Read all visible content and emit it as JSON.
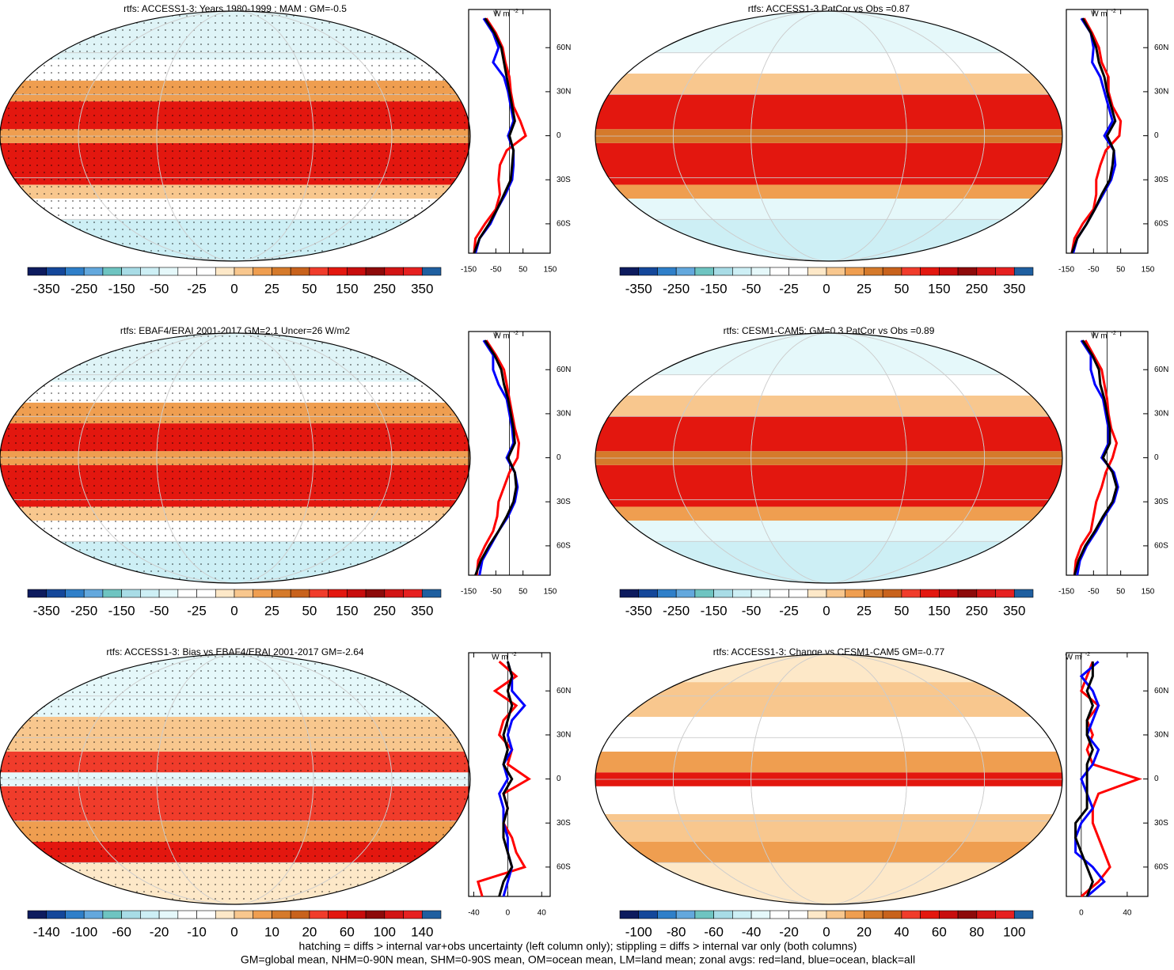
{
  "chart_data": [
    {
      "type": "map_zonal",
      "title": "rtfs: ACCESS1-3: Years 1980-1999 : MAM : GM=-0.5",
      "colorbar_ticks": [
        -350,
        -250,
        -150,
        -50,
        -25,
        0,
        25,
        50,
        150,
        250,
        350
      ],
      "units": "W m",
      "units_exp": "-2",
      "xlim": [
        -150,
        150
      ],
      "xticks": [
        -150,
        -50,
        50,
        150
      ],
      "ylim": [
        -80,
        86
      ],
      "yticks": [
        {
          "value": 60,
          "label": "60N"
        },
        {
          "value": 30,
          "label": "30N"
        },
        0,
        {
          "value": -30,
          "label": "30S"
        },
        {
          "value": -60,
          "label": "60S"
        }
      ],
      "lat": [
        -80,
        -70,
        -60,
        -50,
        -40,
        -30,
        -20,
        -10,
        0,
        10,
        20,
        30,
        40,
        50,
        60,
        70,
        80
      ],
      "series": [
        {
          "color": "#ff0000",
          "values": [
            -130,
            -125,
            -90,
            -50,
            -35,
            -40,
            -35,
            -10,
            60,
            40,
            15,
            5,
            0,
            -15,
            -25,
            -50,
            -85
          ]
        },
        {
          "color": "#0000ff",
          "values": [
            -125,
            -110,
            -70,
            -45,
            -15,
            10,
            15,
            15,
            -5,
            15,
            5,
            -5,
            -20,
            -60,
            -40,
            -60,
            -95
          ]
        },
        {
          "color": "#000000",
          "values": [
            -130,
            -110,
            -75,
            -45,
            -20,
            5,
            10,
            15,
            0,
            20,
            10,
            0,
            -10,
            -20,
            -30,
            -55,
            -90
          ]
        }
      ]
    },
    {
      "type": "map_zonal",
      "title": "rtfs: ACCESS1-3 PatCor vs Obs =0.87",
      "colorbar_ticks": [
        -350,
        -250,
        -150,
        -50,
        -25,
        0,
        25,
        50,
        150,
        250,
        350
      ],
      "units": "W m",
      "units_exp": "-2",
      "xlim": [
        -150,
        150
      ],
      "xticks": [
        -150,
        -50,
        50,
        150
      ],
      "ylim": [
        -80,
        86
      ],
      "yticks": [
        {
          "value": 60,
          "label": "60N"
        },
        {
          "value": 30,
          "label": "30N"
        },
        0,
        {
          "value": -30,
          "label": "30S"
        },
        {
          "value": -60,
          "label": "60S"
        }
      ],
      "lat": [
        -80,
        -70,
        -60,
        -50,
        -40,
        -30,
        -20,
        -10,
        0,
        10,
        20,
        30,
        40,
        50,
        60,
        70,
        80
      ],
      "series": [
        {
          "color": "#ff0000",
          "values": [
            -130,
            -120,
            -90,
            -50,
            -40,
            -40,
            -25,
            -5,
            45,
            50,
            20,
            5,
            5,
            -20,
            -30,
            -55,
            -85
          ]
        },
        {
          "color": "#0000ff",
          "values": [
            -125,
            -110,
            -75,
            -45,
            -15,
            15,
            30,
            25,
            -10,
            20,
            5,
            -10,
            -25,
            -55,
            -50,
            -60,
            -95
          ]
        },
        {
          "color": "#000000",
          "values": [
            -130,
            -110,
            -75,
            -45,
            -20,
            10,
            20,
            25,
            0,
            30,
            15,
            0,
            -10,
            -30,
            -40,
            -60,
            -90
          ]
        }
      ]
    },
    {
      "type": "map_zonal",
      "title": "rtfs: EBAF4/ERAI 2001-2017 GM=2.1 Uncer=26 W/m2",
      "colorbar_ticks": [
        -350,
        -250,
        -150,
        -50,
        -25,
        0,
        25,
        50,
        150,
        250,
        350
      ],
      "units": "W m",
      "units_exp": "-2",
      "xlim": [
        -150,
        150
      ],
      "xticks": [
        -150,
        -50,
        50,
        150
      ],
      "ylim": [
        -80,
        86
      ],
      "yticks": [
        {
          "value": 60,
          "label": "60N"
        },
        {
          "value": 30,
          "label": "30N"
        },
        0,
        {
          "value": -30,
          "label": "30S"
        },
        {
          "value": -60,
          "label": "60S"
        }
      ],
      "lat": [
        -80,
        -70,
        -60,
        -50,
        -40,
        -30,
        -20,
        -10,
        0,
        10,
        20,
        30,
        40,
        50,
        60,
        70,
        80
      ],
      "series": [
        {
          "color": "#ff0000",
          "values": [
            -120,
            -115,
            -90,
            -60,
            -45,
            -40,
            -20,
            0,
            30,
            35,
            20,
            10,
            0,
            -10,
            -20,
            -50,
            -85
          ]
        },
        {
          "color": "#0000ff",
          "values": [
            -110,
            -100,
            -70,
            -40,
            -5,
            20,
            30,
            20,
            -10,
            15,
            10,
            0,
            -10,
            -40,
            -60,
            -60,
            -95
          ]
        },
        {
          "color": "#000000",
          "values": [
            -125,
            -105,
            -75,
            -40,
            -10,
            15,
            25,
            20,
            -5,
            20,
            15,
            5,
            -5,
            -20,
            -30,
            -55,
            -90
          ]
        }
      ]
    },
    {
      "type": "map_zonal",
      "title": "rtfs: CESM1-CAM5: GM=0.3 PatCor vs Obs =0.89",
      "colorbar_ticks": [
        -350,
        -250,
        -150,
        -50,
        -25,
        0,
        25,
        50,
        150,
        250,
        350
      ],
      "units": "W m",
      "units_exp": "-2",
      "xlim": [
        -150,
        150
      ],
      "xticks": [
        -150,
        -50,
        50,
        150
      ],
      "ylim": [
        -80,
        86
      ],
      "yticks": [
        {
          "value": 60,
          "label": "60N"
        },
        {
          "value": 30,
          "label": "30N"
        },
        0,
        {
          "value": -30,
          "label": "30S"
        },
        {
          "value": -60,
          "label": "60S"
        }
      ],
      "lat": [
        -80,
        -70,
        -60,
        -50,
        -40,
        -30,
        -20,
        -10,
        0,
        10,
        20,
        30,
        40,
        50,
        60,
        70,
        80
      ],
      "series": [
        {
          "color": "#ff0000",
          "values": [
            -120,
            -115,
            -95,
            -60,
            -50,
            -40,
            -20,
            -5,
            20,
            35,
            15,
            5,
            0,
            -10,
            -20,
            -50,
            -80
          ]
        },
        {
          "color": "#0000ff",
          "values": [
            -110,
            -100,
            -75,
            -40,
            -10,
            25,
            40,
            25,
            -20,
            5,
            5,
            -5,
            -15,
            -45,
            -60,
            -60,
            -95
          ]
        },
        {
          "color": "#000000",
          "values": [
            -120,
            -105,
            -80,
            -45,
            -15,
            20,
            35,
            20,
            -15,
            10,
            10,
            0,
            -10,
            -25,
            -30,
            -55,
            -90
          ]
        }
      ]
    },
    {
      "type": "map_zonal",
      "title": "rtfs: ACCESS1-3: Bias vs EBAF4/ERAI 2001-2017 GM=-2.64",
      "colorbar_ticks": [
        -140,
        -100,
        -60,
        -20,
        -10,
        0,
        10,
        20,
        60,
        100,
        140
      ],
      "units": "W m",
      "units_exp": "-2",
      "xlim": [
        -46,
        50
      ],
      "xticks": [
        -40,
        0,
        40
      ],
      "ylim": [
        -80,
        86
      ],
      "yticks": [
        {
          "value": 60,
          "label": "60N"
        },
        {
          "value": 30,
          "label": "30N"
        },
        0,
        {
          "value": -30,
          "label": "30S"
        },
        {
          "value": -60,
          "label": "60S"
        }
      ],
      "lat": [
        -80,
        -70,
        -60,
        -50,
        -40,
        -30,
        -20,
        -10,
        0,
        10,
        20,
        30,
        40,
        50,
        60,
        70,
        80
      ],
      "series": [
        {
          "color": "#ff0000",
          "values": [
            -30,
            -35,
            20,
            10,
            5,
            -5,
            0,
            -5,
            25,
            0,
            5,
            -10,
            -5,
            10,
            -15,
            10,
            -10
          ]
        },
        {
          "color": "#0000ff",
          "values": [
            -5,
            0,
            5,
            0,
            0,
            -5,
            -5,
            -10,
            0,
            -5,
            5,
            0,
            5,
            20,
            5,
            5,
            0
          ]
        },
        {
          "color": "#000000",
          "values": [
            -10,
            -5,
            5,
            0,
            -5,
            -5,
            0,
            -5,
            5,
            -5,
            0,
            -5,
            0,
            5,
            0,
            5,
            0
          ]
        }
      ]
    },
    {
      "type": "map_zonal",
      "title": "rtfs: ACCESS1-3: Change vs CESM1-CAM5 GM=-0.77",
      "colorbar_ticks": [
        -100,
        -80,
        -60,
        -40,
        -20,
        0,
        20,
        40,
        60,
        80,
        100
      ],
      "units": "W m",
      "units_exp": "-2",
      "xlim": [
        -13,
        58
      ],
      "xticks": [
        0,
        40
      ],
      "ylim": [
        -80,
        86
      ],
      "yticks": [
        {
          "value": 60,
          "label": "60N"
        },
        {
          "value": 30,
          "label": "30N"
        },
        0,
        {
          "value": -30,
          "label": "30S"
        },
        {
          "value": -60,
          "label": "60S"
        }
      ],
      "lat": [
        -80,
        -70,
        -60,
        -50,
        -40,
        -30,
        -20,
        -10,
        0,
        10,
        20,
        30,
        40,
        50,
        60,
        70,
        80
      ],
      "series": [
        {
          "color": "#ff0000",
          "values": [
            0,
            15,
            25,
            20,
            15,
            10,
            10,
            15,
            50,
            10,
            5,
            10,
            5,
            15,
            0,
            5,
            10
          ]
        },
        {
          "color": "#0000ff",
          "values": [
            5,
            20,
            10,
            -5,
            -5,
            0,
            10,
            5,
            0,
            10,
            15,
            5,
            10,
            15,
            10,
            0,
            15
          ]
        },
        {
          "color": "#000000",
          "values": [
            5,
            10,
            5,
            0,
            -5,
            -5,
            5,
            5,
            5,
            5,
            10,
            5,
            5,
            10,
            5,
            10,
            10
          ]
        }
      ]
    }
  ],
  "colorbar_colors": [
    "#0d1b5e",
    "#14479a",
    "#2f7fc9",
    "#63a8dd",
    "#6ec4c1",
    "#a8dce6",
    "#cdeff5",
    "#e5f8fa",
    "#ffffff",
    "#ffffff",
    "#fde8c8",
    "#f8c78e",
    "#ef9e50",
    "#d57a2b",
    "#c8621c",
    "#f03c2b",
    "#e3170f",
    "#c80d0d",
    "#8d0a0a",
    "#d21414",
    "#e62020",
    "#1f5fa0"
  ],
  "notes": [
    "hatching = diffs > internal var+obs uncertainty (left column only); stippling = diffs > internal var only (both columns)",
    "GM=global mean, NHM=0-90N mean, SHM=0-90S mean, OM=ocean mean, LM=land mean; zonal avgs: red=land, blue=ocean, black=all"
  ]
}
